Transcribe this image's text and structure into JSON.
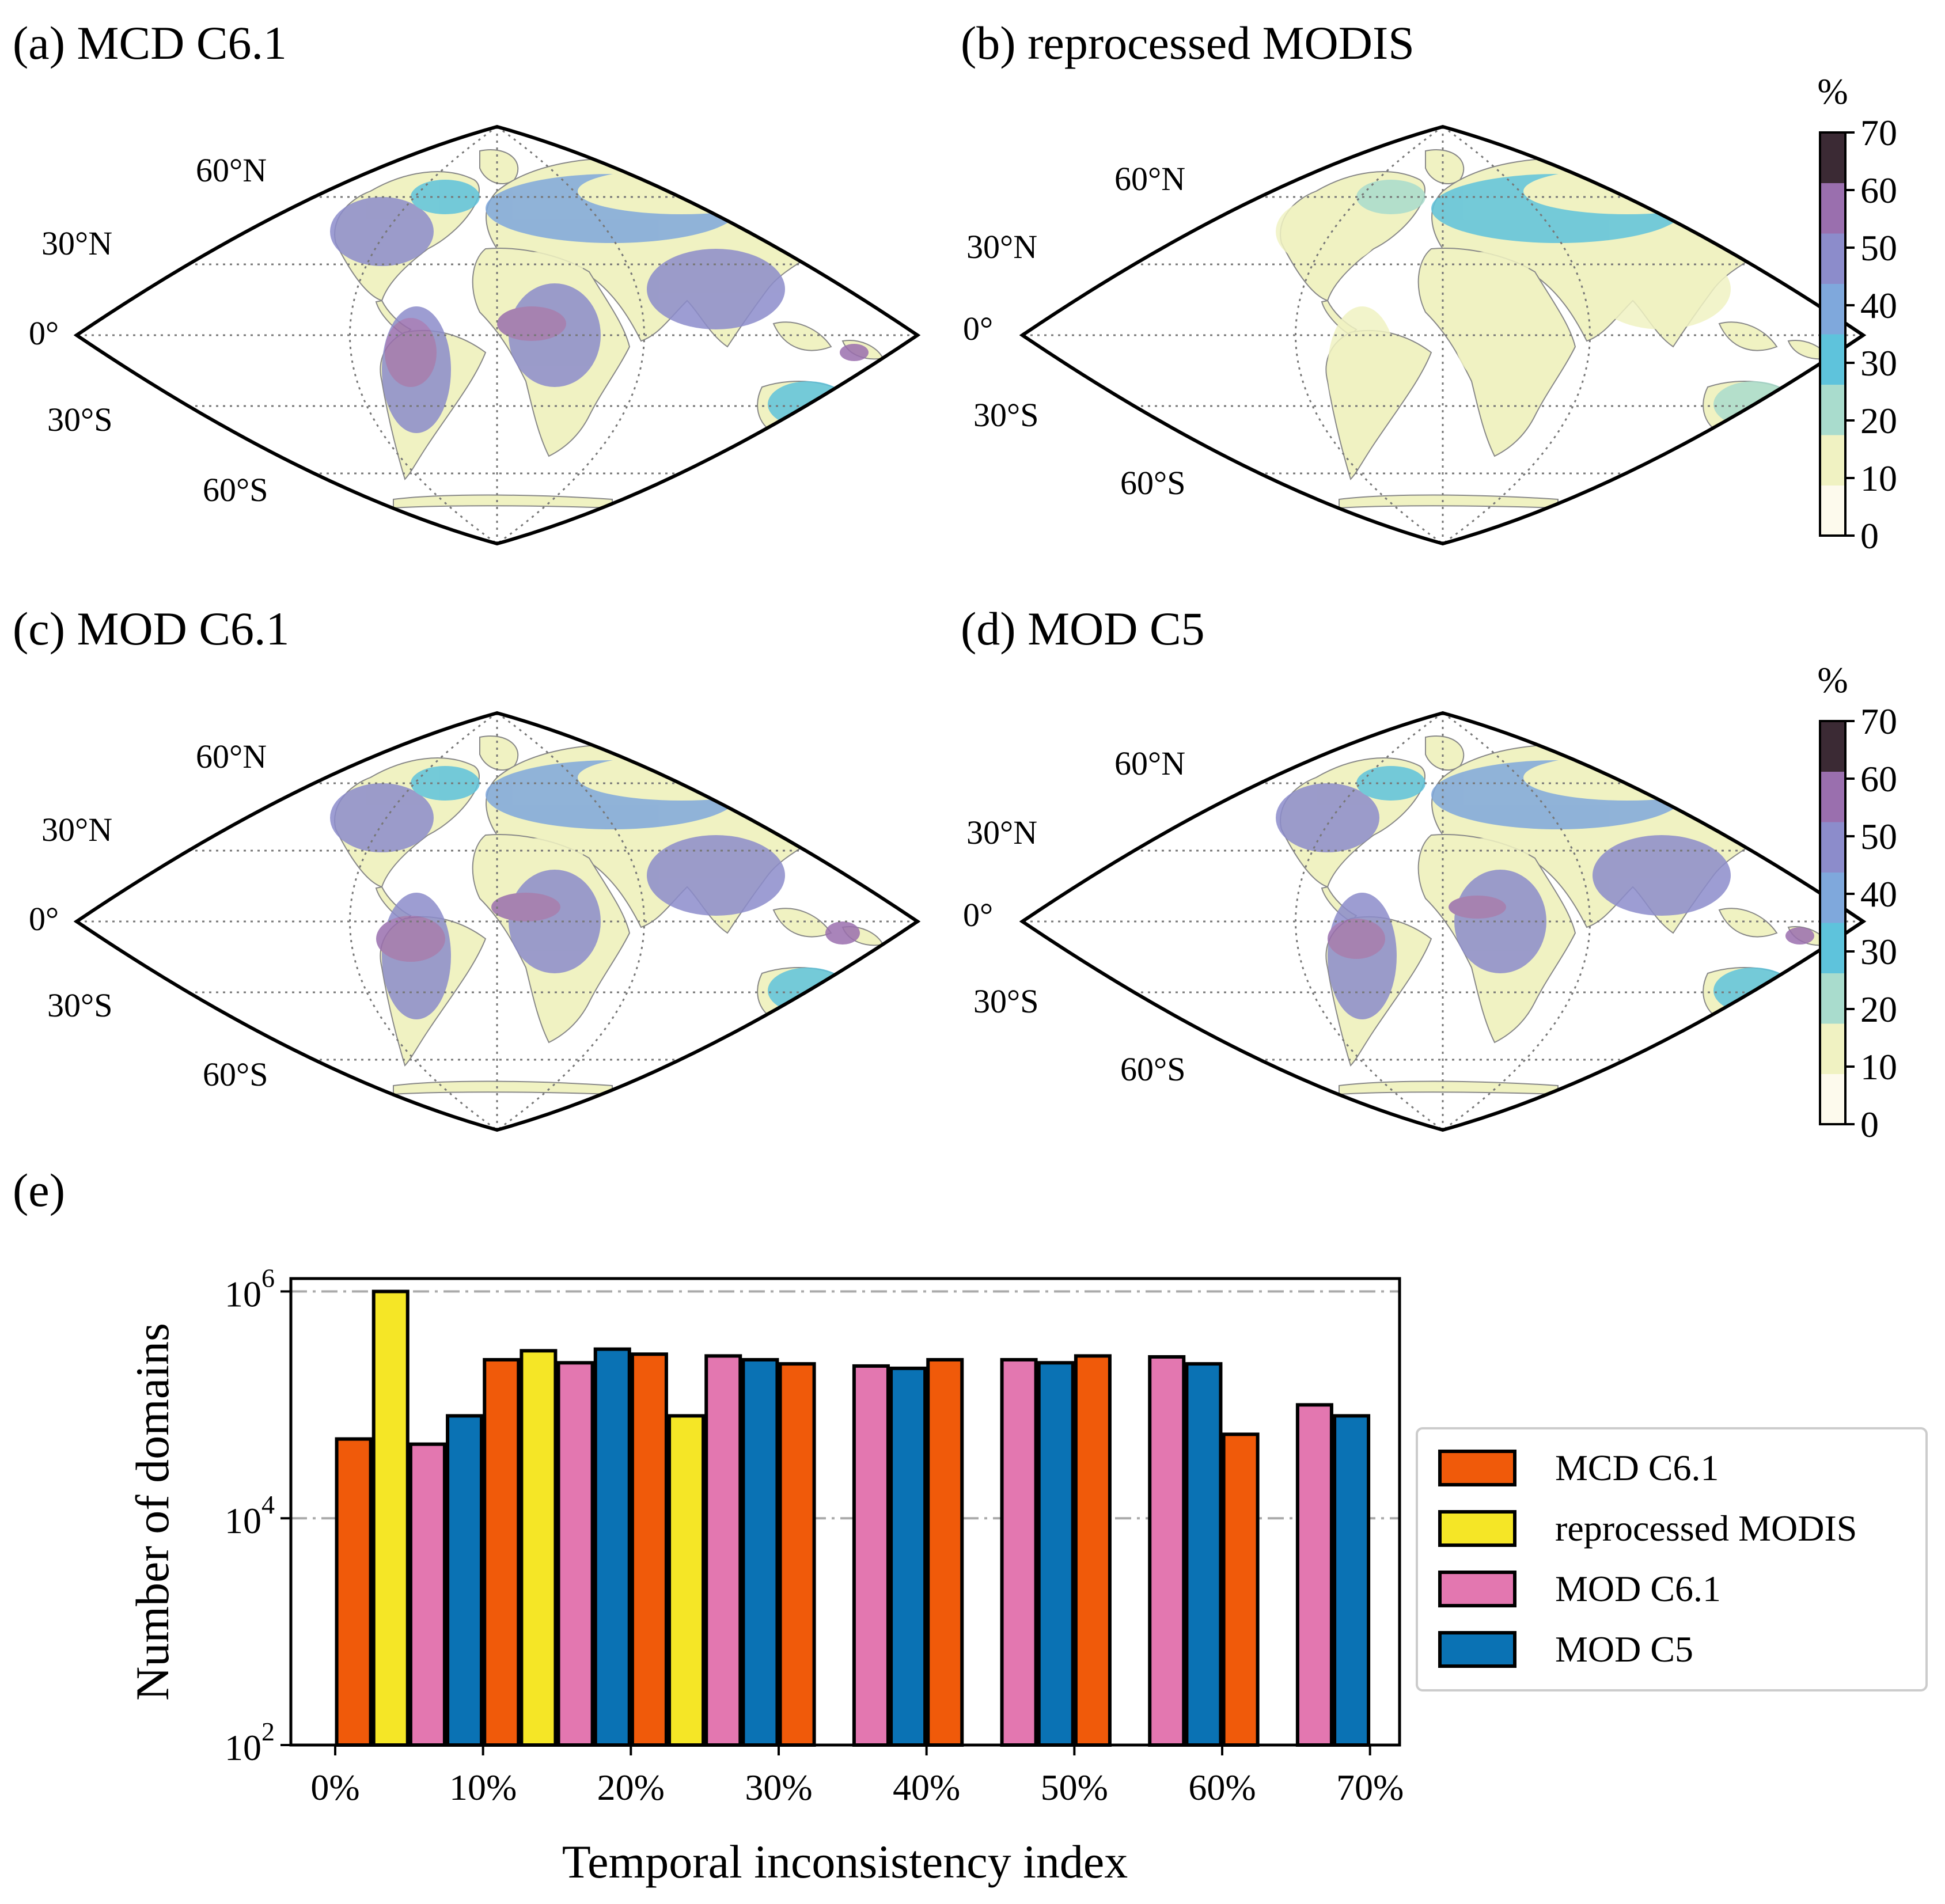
{
  "panels": {
    "a": "(a) MCD C6.1",
    "b": "(b) reprocessed MODIS",
    "c": "(c) MOD C6.1",
    "d": "(d) MOD C5",
    "e": "(e)"
  },
  "latitude_labels": {
    "n60": "60°N",
    "n30": "30°N",
    "eq": "0°",
    "s30": "30°S",
    "s60": "60°S"
  },
  "colorbar": {
    "unit": "%",
    "ticks": [
      "0",
      "10",
      "20",
      "30",
      "40",
      "50",
      "60",
      "70"
    ],
    "colors": [
      "#fdfaed",
      "#f0f2c2",
      "#a9dccd",
      "#5ec3dc",
      "#7fa8dc",
      "#8c8ccb",
      "#9a6fae",
      "#3b2a34"
    ]
  },
  "chart_data": {
    "type": "bar",
    "ylabel": "Number of domains",
    "xlabel": "Temporal inconsistency index",
    "yscale": "log",
    "ylim": [
      100,
      1300000
    ],
    "xlim": [
      -3,
      72
    ],
    "y_ticks": [
      {
        "value": 100,
        "base": "10",
        "exp": "2"
      },
      {
        "value": 10000,
        "base": "10",
        "exp": "4"
      },
      {
        "value": 1000000,
        "base": "10",
        "exp": "6"
      }
    ],
    "x_ticks": [
      {
        "value": 0,
        "label": "0%"
      },
      {
        "value": 10,
        "label": "10%"
      },
      {
        "value": 20,
        "label": "20%"
      },
      {
        "value": 30,
        "label": "30%"
      },
      {
        "value": 40,
        "label": "40%"
      },
      {
        "value": 50,
        "label": "50%"
      },
      {
        "value": 60,
        "label": "60%"
      },
      {
        "value": 70,
        "label": "70%"
      }
    ],
    "bin_centers": [
      5,
      15,
      25,
      35,
      45,
      55,
      65
    ],
    "series": [
      {
        "name": "MCD C6.1",
        "color": "#f05a0a",
        "values": [
          50000,
          250000,
          280000,
          230000,
          250000,
          270000,
          55000
        ]
      },
      {
        "name": "reprocessed MODIS",
        "color": "#f5e626",
        "values": [
          1000000,
          300000,
          80000,
          null,
          null,
          null,
          null
        ]
      },
      {
        "name": "MOD C6.1",
        "color": "#e377b0",
        "values": [
          45000,
          235000,
          270000,
          220000,
          250000,
          265000,
          100000
        ]
      },
      {
        "name": "MOD C5",
        "color": "#0a72b4",
        "values": [
          80000,
          310000,
          250000,
          210000,
          235000,
          230000,
          80000
        ]
      }
    ],
    "grid": "horizontal dash-dot at 10^4 and 10^6",
    "legend": "right"
  }
}
